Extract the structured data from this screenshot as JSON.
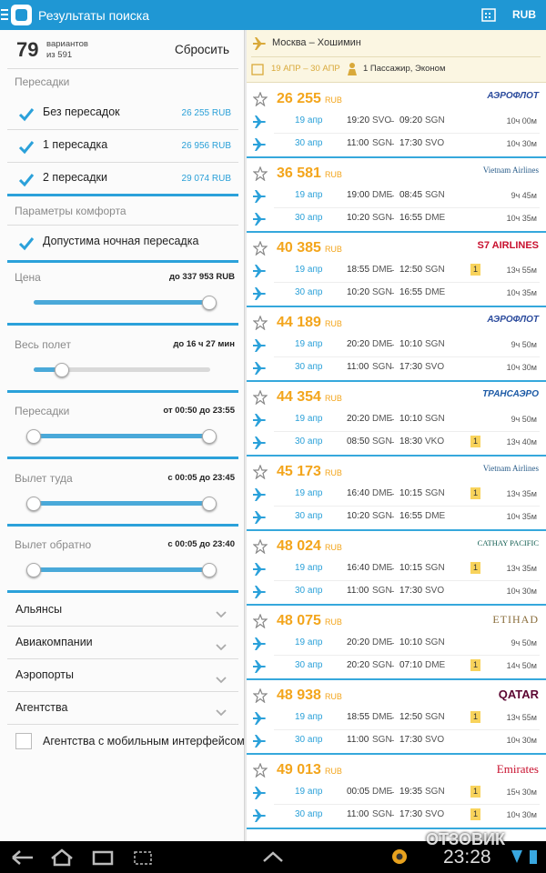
{
  "top_bar": {
    "title": "Результаты поиска",
    "currency": "RUB"
  },
  "filters": {
    "count": "79",
    "count_label": "вариантов",
    "total": "из 591",
    "reset": "Сбросить",
    "stops_header": "Пересадки",
    "stops": [
      {
        "label": "Без пересадок",
        "price": "26 255 RUB",
        "checked": true
      },
      {
        "label": "1 пересадка",
        "price": "26 956 RUB",
        "checked": true
      },
      {
        "label": "2 пересадки",
        "price": "29 074 RUB",
        "checked": true
      }
    ],
    "comfort_header": "Параметры комфорта",
    "comfort": [
      {
        "label": "Допустима ночная пересадка",
        "checked": true
      }
    ],
    "sliders": [
      {
        "label": "Цена",
        "range": "до 337 953 RUB"
      },
      {
        "label": "Весь полет",
        "range": "до 16 ч 27 мин"
      },
      {
        "label": "Пересадки",
        "range": "от 00:50 до 23:55"
      },
      {
        "label": "Вылет туда",
        "range": "с 00:05 до 23:45"
      },
      {
        "label": "Вылет обратно",
        "range": "с 00:05 до 23:40"
      }
    ],
    "groups": [
      "Альянсы",
      "Авиакомпании",
      "Аэропорты",
      "Агентства"
    ],
    "mobile_agencies": {
      "label": "Агентства с мобильным интерфейсом",
      "checked": false
    }
  },
  "route": {
    "title": "Москва – Хошимин",
    "dates": "19 АПР – 30 АПР",
    "passengers": "1 Пассажир, Эконом"
  },
  "results": [
    {
      "price": "26 255",
      "currency": "RUB",
      "airline": "АЭРОФЛОТ",
      "legs": [
        {
          "date": "19 апр",
          "dep_time": "19:20",
          "dep_airport": "SVO",
          "arr_time": "09:20",
          "arr_airport": "SGN",
          "stops": null,
          "duration": "10ч 00м"
        },
        {
          "date": "30 апр",
          "dep_time": "11:00",
          "dep_airport": "SGN",
          "arr_time": "17:30",
          "arr_airport": "SVO",
          "stops": null,
          "duration": "10ч 30м"
        }
      ]
    },
    {
      "price": "36 581",
      "currency": "RUB",
      "airline": "Vietnam Airlines",
      "legs": [
        {
          "date": "19 апр",
          "dep_time": "19:00",
          "dep_airport": "DME",
          "arr_time": "08:45",
          "arr_airport": "SGN",
          "stops": null,
          "duration": "9ч 45м"
        },
        {
          "date": "30 апр",
          "dep_time": "10:20",
          "dep_airport": "SGN",
          "arr_time": "16:55",
          "arr_airport": "DME",
          "stops": null,
          "duration": "10ч 35м"
        }
      ]
    },
    {
      "price": "40 385",
      "currency": "RUB",
      "airline": "S7 AIRLINES",
      "legs": [
        {
          "date": "19 апр",
          "dep_time": "18:55",
          "dep_airport": "DME",
          "arr_time": "12:50",
          "arr_airport": "SGN",
          "stops": 1,
          "duration": "13ч 55м"
        },
        {
          "date": "30 апр",
          "dep_time": "10:20",
          "dep_airport": "SGN",
          "arr_time": "16:55",
          "arr_airport": "DME",
          "stops": null,
          "duration": "10ч 35м"
        }
      ]
    },
    {
      "price": "44 189",
      "currency": "RUB",
      "airline": "АЭРОФЛОТ",
      "legs": [
        {
          "date": "19 апр",
          "dep_time": "20:20",
          "dep_airport": "DME",
          "arr_time": "10:10",
          "arr_airport": "SGN",
          "stops": null,
          "duration": "9ч 50м"
        },
        {
          "date": "30 апр",
          "dep_time": "11:00",
          "dep_airport": "SGN",
          "arr_time": "17:30",
          "arr_airport": "SVO",
          "stops": null,
          "duration": "10ч 30м"
        }
      ]
    },
    {
      "price": "44 354",
      "currency": "RUB",
      "airline": "ТРАНСАЭРО",
      "legs": [
        {
          "date": "19 апр",
          "dep_time": "20:20",
          "dep_airport": "DME",
          "arr_time": "10:10",
          "arr_airport": "SGN",
          "stops": null,
          "duration": "9ч 50м"
        },
        {
          "date": "30 апр",
          "dep_time": "08:50",
          "dep_airport": "SGN",
          "arr_time": "18:30",
          "arr_airport": "VKO",
          "stops": 1,
          "duration": "13ч 40м"
        }
      ]
    },
    {
      "price": "45 173",
      "currency": "RUB",
      "airline": "Vietnam Airlines",
      "legs": [
        {
          "date": "19 апр",
          "dep_time": "16:40",
          "dep_airport": "DME",
          "arr_time": "10:15",
          "arr_airport": "SGN",
          "stops": 1,
          "duration": "13ч 35м"
        },
        {
          "date": "30 апр",
          "dep_time": "10:20",
          "dep_airport": "SGN",
          "arr_time": "16:55",
          "arr_airport": "DME",
          "stops": null,
          "duration": "10ч 35м"
        }
      ]
    },
    {
      "price": "48 024",
      "currency": "RUB",
      "airline": "CATHAY PACIFIC",
      "legs": [
        {
          "date": "19 апр",
          "dep_time": "16:40",
          "dep_airport": "DME",
          "arr_time": "10:15",
          "arr_airport": "SGN",
          "stops": 1,
          "duration": "13ч 35м"
        },
        {
          "date": "30 апр",
          "dep_time": "11:00",
          "dep_airport": "SGN",
          "arr_time": "17:30",
          "arr_airport": "SVO",
          "stops": null,
          "duration": "10ч 30м"
        }
      ]
    },
    {
      "price": "48 075",
      "currency": "RUB",
      "airline": "ETIHAD",
      "legs": [
        {
          "date": "19 апр",
          "dep_time": "20:20",
          "dep_airport": "DME",
          "arr_time": "10:10",
          "arr_airport": "SGN",
          "stops": null,
          "duration": "9ч 50м"
        },
        {
          "date": "30 апр",
          "dep_time": "20:20",
          "dep_airport": "SGN",
          "arr_time": "07:10",
          "arr_airport": "DME",
          "stops": 1,
          "duration": "14ч 50м"
        }
      ]
    },
    {
      "price": "48 938",
      "currency": "RUB",
      "airline": "QATAR",
      "legs": [
        {
          "date": "19 апр",
          "dep_time": "18:55",
          "dep_airport": "DME",
          "arr_time": "12:50",
          "arr_airport": "SGN",
          "stops": 1,
          "duration": "13ч 55м"
        },
        {
          "date": "30 апр",
          "dep_time": "11:00",
          "dep_airport": "SGN",
          "arr_time": "17:30",
          "arr_airport": "SVO",
          "stops": null,
          "duration": "10ч 30м"
        }
      ]
    },
    {
      "price": "49 013",
      "currency": "RUB",
      "airline": "Emirates",
      "legs": [
        {
          "date": "19 апр",
          "dep_time": "00:05",
          "dep_airport": "DME",
          "arr_time": "19:35",
          "arr_airport": "SGN",
          "stops": 1,
          "duration": "15ч 30м"
        },
        {
          "date": "30 апр",
          "dep_time": "11:00",
          "dep_airport": "SGN",
          "arr_time": "17:30",
          "arr_airport": "SVO",
          "stops": 1,
          "duration": "10ч 30м"
        }
      ]
    }
  ],
  "status_bar": {
    "clock": "23:28",
    "watermark": "ОТЗОВИК"
  }
}
